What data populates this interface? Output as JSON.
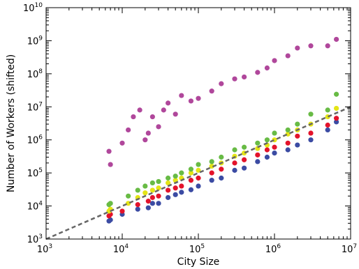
{
  "chart_data": {
    "type": "scatter",
    "xlabel": "City Size",
    "ylabel": "Number of Workers (shifted)",
    "xscale": "log",
    "yscale": "log",
    "xlim": [
      1000,
      10000000
    ],
    "ylim": [
      1000,
      10000000000
    ],
    "grid": false,
    "legend": "none",
    "x_ticks": [
      {
        "base": "10",
        "exp": "3",
        "value": 1000
      },
      {
        "base": "10",
        "exp": "4",
        "value": 10000
      },
      {
        "base": "10",
        "exp": "5",
        "value": 100000
      },
      {
        "base": "10",
        "exp": "6",
        "value": 1000000
      },
      {
        "base": "10",
        "exp": "7",
        "value": 10000000
      }
    ],
    "y_ticks": [
      {
        "base": "10",
        "exp": "3",
        "value": 1000
      },
      {
        "base": "10",
        "exp": "4",
        "value": 10000
      },
      {
        "base": "10",
        "exp": "5",
        "value": 100000
      },
      {
        "base": "10",
        "exp": "6",
        "value": 1000000
      },
      {
        "base": "10",
        "exp": "7",
        "value": 10000000
      },
      {
        "base": "10",
        "exp": "8",
        "value": 100000000
      },
      {
        "base": "10",
        "exp": "9",
        "value": 1000000000
      },
      {
        "base": "10",
        "exp": "10",
        "value": 10000000000
      }
    ],
    "reference_line": {
      "style": "dashed",
      "color": "#666666",
      "x": [
        1000,
        10000000
      ],
      "y": [
        1000,
        10000000
      ]
    },
    "series": [
      {
        "color": "#3b4ba3",
        "points": [
          [
            6700,
            3500
          ],
          [
            7000,
            3800
          ],
          [
            10000,
            5600
          ],
          [
            16000,
            8000
          ],
          [
            22000,
            8800
          ],
          [
            25000,
            12000
          ],
          [
            30000,
            12000
          ],
          [
            40000,
            18000
          ],
          [
            50000,
            22000
          ],
          [
            60000,
            26000
          ],
          [
            80000,
            31000
          ],
          [
            100000,
            40000
          ],
          [
            150000,
            60000
          ],
          [
            200000,
            70000
          ],
          [
            300000,
            120000
          ],
          [
            400000,
            140000
          ],
          [
            600000,
            220000
          ],
          [
            800000,
            300000
          ],
          [
            1000000,
            400000
          ],
          [
            1500000,
            500000
          ],
          [
            2000000,
            700000
          ],
          [
            3000000,
            1000000
          ],
          [
            5000000,
            2000000
          ],
          [
            6500000,
            3500000
          ]
        ]
      },
      {
        "color": "#e3132b",
        "points": [
          [
            6700,
            5000
          ],
          [
            7000,
            5600
          ],
          [
            10000,
            7000
          ],
          [
            16000,
            11000
          ],
          [
            22000,
            14000
          ],
          [
            25000,
            18000
          ],
          [
            30000,
            20000
          ],
          [
            40000,
            30000
          ],
          [
            50000,
            35000
          ],
          [
            60000,
            40000
          ],
          [
            80000,
            60000
          ],
          [
            100000,
            70000
          ],
          [
            150000,
            100000
          ],
          [
            200000,
            130000
          ],
          [
            300000,
            200000
          ],
          [
            400000,
            250000
          ],
          [
            600000,
            350000
          ],
          [
            800000,
            500000
          ],
          [
            1000000,
            600000
          ],
          [
            1500000,
            800000
          ],
          [
            2000000,
            1300000
          ],
          [
            3000000,
            1600000
          ],
          [
            5000000,
            2800000
          ],
          [
            6500000,
            4500000
          ]
        ]
      },
      {
        "color": "#e5e516",
        "points": [
          [
            6700,
            7000
          ],
          [
            7000,
            8000
          ],
          [
            12000,
            12000
          ],
          [
            16000,
            18000
          ],
          [
            20000,
            25000
          ],
          [
            25000,
            30000
          ],
          [
            30000,
            35000
          ],
          [
            40000,
            50000
          ],
          [
            50000,
            60000
          ],
          [
            60000,
            70000
          ],
          [
            80000,
            100000
          ],
          [
            100000,
            120000
          ],
          [
            150000,
            160000
          ],
          [
            200000,
            200000
          ],
          [
            300000,
            320000
          ],
          [
            400000,
            400000
          ],
          [
            600000,
            550000
          ],
          [
            800000,
            700000
          ],
          [
            1000000,
            1000000
          ],
          [
            1500000,
            1500000
          ],
          [
            2000000,
            2000000
          ],
          [
            3000000,
            3000000
          ],
          [
            5000000,
            5000000
          ],
          [
            6500000,
            9000000
          ]
        ]
      },
      {
        "color": "#68bb45",
        "points": [
          [
            6700,
            11000
          ],
          [
            7000,
            12000
          ],
          [
            12000,
            20000
          ],
          [
            16000,
            30000
          ],
          [
            20000,
            40000
          ],
          [
            25000,
            50000
          ],
          [
            30000,
            55000
          ],
          [
            40000,
            70000
          ],
          [
            50000,
            80000
          ],
          [
            60000,
            100000
          ],
          [
            80000,
            130000
          ],
          [
            100000,
            180000
          ],
          [
            150000,
            220000
          ],
          [
            200000,
            300000
          ],
          [
            300000,
            500000
          ],
          [
            400000,
            600000
          ],
          [
            600000,
            800000
          ],
          [
            800000,
            1000000
          ],
          [
            1000000,
            1600000
          ],
          [
            1500000,
            2000000
          ],
          [
            2000000,
            3000000
          ],
          [
            3000000,
            6000000
          ],
          [
            5000000,
            8000000
          ],
          [
            6500000,
            24000000
          ]
        ]
      },
      {
        "color": "#b0479b",
        "points": [
          [
            6700,
            450000
          ],
          [
            7000,
            180000
          ],
          [
            10000,
            800000
          ],
          [
            12000,
            2000000
          ],
          [
            14000,
            5000000
          ],
          [
            17000,
            8000000
          ],
          [
            20000,
            1000000
          ],
          [
            22000,
            1600000
          ],
          [
            25000,
            5000000
          ],
          [
            30000,
            2500000
          ],
          [
            35000,
            8000000
          ],
          [
            40000,
            13000000
          ],
          [
            50000,
            6000000
          ],
          [
            60000,
            22000000
          ],
          [
            80000,
            15000000
          ],
          [
            100000,
            18000000
          ],
          [
            150000,
            30000000
          ],
          [
            200000,
            50000000
          ],
          [
            300000,
            70000000
          ],
          [
            400000,
            80000000
          ],
          [
            600000,
            110000000
          ],
          [
            800000,
            150000000
          ],
          [
            1000000,
            250000000
          ],
          [
            1500000,
            350000000
          ],
          [
            2000000,
            600000000
          ],
          [
            3000000,
            700000000
          ],
          [
            5000000,
            700000000
          ],
          [
            6500000,
            1100000000
          ]
        ]
      }
    ]
  }
}
